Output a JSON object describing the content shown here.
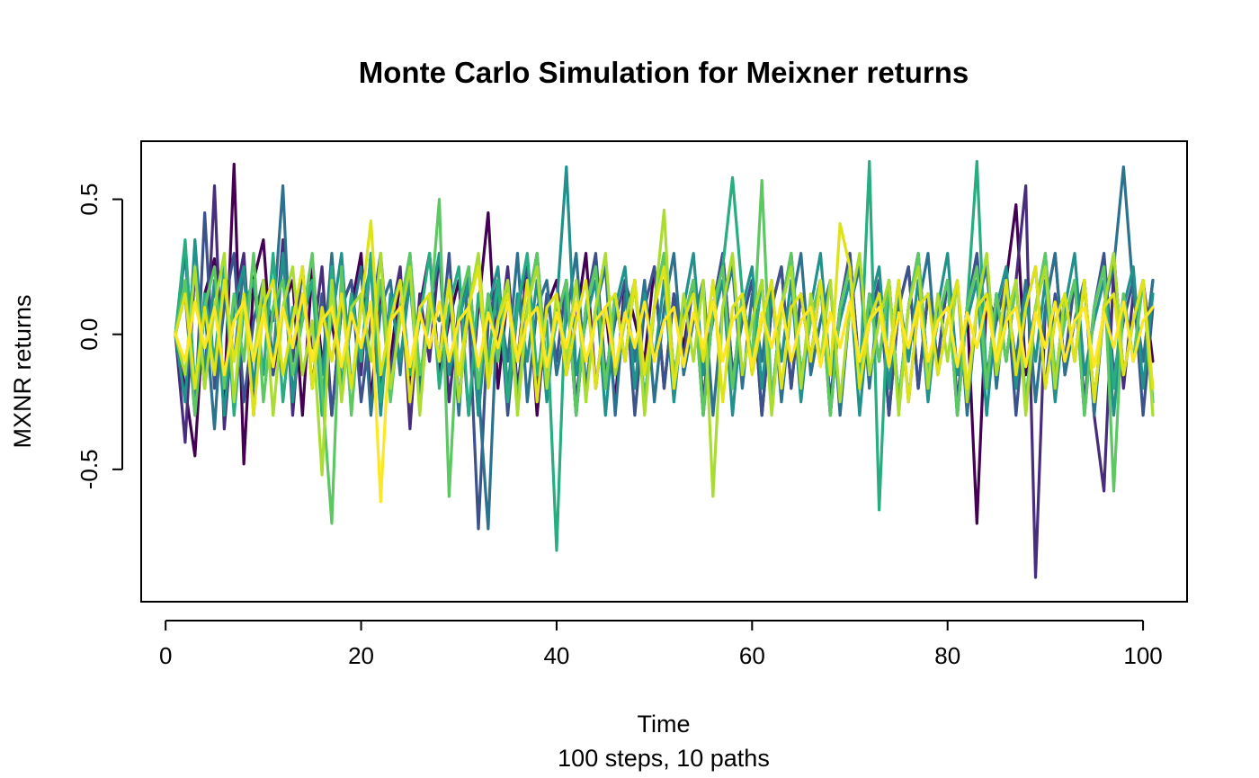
{
  "chart_data": {
    "type": "line",
    "title": "Monte Carlo Simulation for Meixner returns",
    "xlabel": "Time",
    "sublabel": "100 steps, 10 paths",
    "ylabel": "MXNR returns",
    "xlim": [
      -2.5,
      104.5
    ],
    "ylim": [
      -0.99,
      0.715
    ],
    "x_ticks": [
      0,
      20,
      40,
      60,
      80,
      100
    ],
    "x_tick_labels": [
      "0",
      "20",
      "40",
      "60",
      "80",
      "100"
    ],
    "y_ticks": [
      -0.5,
      0.0,
      0.5
    ],
    "y_tick_labels": [
      "-0.5",
      "0.0",
      "0.5"
    ],
    "x_start": 1,
    "n_points": 101,
    "palette": "viridis",
    "series": [
      {
        "color": "#440154",
        "values": [
          0,
          -0.2,
          -0.45,
          0.15,
          0.28,
          -0.25,
          0.63,
          -0.48,
          0.2,
          0.35,
          -0.15,
          0.1,
          0.2,
          -0.3,
          0.25,
          -0.1,
          0.05,
          -0.2,
          0.1,
          0.3,
          -0.25,
          0.15,
          -0.1,
          0.2,
          -0.2,
          0.1,
          0.3,
          -0.15,
          0.05,
          0.2,
          -0.3,
          0.1,
          0.45,
          -0.2,
          0.15,
          -0.1,
          0.25,
          -0.3,
          0.1,
          0.2,
          -0.15,
          0.05,
          0.3,
          -0.2,
          0.1,
          -0.25,
          0.2,
          0.05,
          -0.1,
          0.25,
          -0.2,
          0.15,
          -0.05,
          0.2,
          -0.25,
          0.1,
          0.3,
          -0.15,
          0.05,
          0.2,
          -0.3,
          0.1,
          0.25,
          -0.2,
          0.15,
          -0.1,
          0.2,
          -0.25,
          0.1,
          0.3,
          -0.15,
          0.05,
          0.2,
          -0.3,
          0.1,
          0.25,
          -0.2,
          0.15,
          -0.1,
          0.2,
          -0.25,
          0.1,
          -0.7,
          0.15,
          0.05,
          0.2,
          0.48,
          -0.15,
          0.1,
          0.25,
          -0.2,
          0.15,
          -0.1,
          0.2,
          -0.25,
          0.1,
          0.3,
          -0.15,
          0.05,
          0.2,
          -0.1
        ]
      },
      {
        "color": "#472D7B",
        "values": [
          0,
          -0.4,
          0.25,
          -0.2,
          0.55,
          -0.35,
          0.1,
          0.3,
          -0.25,
          0.2,
          -0.1,
          0.35,
          -0.3,
          0.15,
          -0.05,
          0.25,
          -0.3,
          0.1,
          0.2,
          -0.15,
          0.3,
          -0.2,
          0.05,
          0.25,
          -0.35,
          0.15,
          -0.1,
          0.3,
          -0.25,
          0.1,
          0.2,
          -0.3,
          0.15,
          -0.05,
          0.25,
          -0.2,
          0.1,
          0.3,
          -0.15,
          0.05,
          0.2,
          -0.3,
          0.1,
          0.25,
          -0.2,
          0.15,
          -0.1,
          0.2,
          -0.25,
          0.1,
          0.3,
          -0.15,
          0.05,
          0.2,
          -0.3,
          0.1,
          0.25,
          -0.2,
          0.15,
          -0.1,
          0.2,
          -0.25,
          0.1,
          0.3,
          -0.15,
          0.05,
          0.2,
          -0.3,
          0.1,
          0.25,
          -0.2,
          0.15,
          -0.1,
          0.2,
          -0.25,
          0.1,
          0.3,
          -0.15,
          0.05,
          0.2,
          -0.3,
          0.1,
          0.25,
          -0.2,
          0.15,
          -0.1,
          0.2,
          0.55,
          -0.9,
          0.1,
          0.3,
          -0.15,
          0.05,
          0.2,
          -0.3,
          -0.58,
          0.25,
          -0.2,
          0.15,
          -0.1,
          0.2
        ]
      },
      {
        "color": "#3B528B",
        "values": [
          0,
          0.15,
          -0.3,
          0.45,
          -0.2,
          0.1,
          0.3,
          -0.25,
          0.05,
          0.2,
          -0.15,
          0.3,
          -0.1,
          0.25,
          -0.2,
          0.15,
          -0.3,
          0.1,
          0.2,
          -0.25,
          0.05,
          0.3,
          -0.15,
          0.1,
          0.25,
          -0.2,
          0.15,
          -0.1,
          0.3,
          -0.25,
          0.1,
          -0.72,
          0.05,
          0.2,
          -0.3,
          0.1,
          0.25,
          -0.2,
          0.15,
          -0.1,
          0.2,
          -0.25,
          0.1,
          0.3,
          -0.15,
          0.05,
          0.2,
          -0.3,
          0.1,
          0.25,
          -0.2,
          0.15,
          -0.1,
          0.2,
          -0.25,
          0.1,
          0.3,
          -0.15,
          0.05,
          0.2,
          -0.3,
          0.1,
          0.25,
          -0.2,
          0.15,
          -0.1,
          0.2,
          -0.25,
          0.1,
          0.3,
          -0.15,
          0.05,
          0.2,
          -0.3,
          0.1,
          0.25,
          -0.2,
          0.15,
          -0.1,
          0.2,
          -0.25,
          0.1,
          0.3,
          -0.15,
          0.05,
          0.2,
          -0.3,
          0.1,
          0.25,
          -0.2,
          0.15,
          -0.1,
          0.2,
          -0.25,
          0.1,
          0.3,
          -0.15,
          0.05,
          0.2,
          -0.3,
          0.1
        ]
      },
      {
        "color": "#2C728E",
        "values": [
          0,
          0.3,
          -0.2,
          0.1,
          -0.35,
          0.2,
          -0.1,
          0.25,
          -0.3,
          0.15,
          0.05,
          0.55,
          -0.25,
          0.1,
          0.2,
          -0.15,
          0.3,
          -0.2,
          0.05,
          0.25,
          -0.3,
          0.1,
          0.2,
          -0.15,
          0.3,
          -0.25,
          0.1,
          0.05,
          0.2,
          -0.3,
          0.25,
          -0.2,
          -0.72,
          0.15,
          -0.1,
          0.3,
          -0.25,
          0.1,
          0.2,
          -0.15,
          0.05,
          0.3,
          -0.2,
          0.1,
          0.25,
          -0.3,
          0.15,
          -0.1,
          0.2,
          -0.25,
          0.1,
          0.3,
          -0.15,
          0.05,
          0.2,
          -0.3,
          0.1,
          0.25,
          -0.2,
          0.15,
          -0.1,
          0.2,
          -0.25,
          0.1,
          0.3,
          -0.15,
          0.05,
          0.2,
          -0.3,
          0.1,
          0.25,
          -0.2,
          0.15,
          -0.1,
          0.2,
          -0.25,
          0.1,
          0.3,
          -0.15,
          0.05,
          0.2,
          -0.3,
          0.1,
          0.25,
          -0.2,
          0.15,
          -0.1,
          0.2,
          -0.25,
          0.1,
          0.3,
          -0.15,
          0.05,
          0.2,
          -0.3,
          0.1,
          0.25,
          0.62,
          0.15,
          -0.1,
          0.2
        ]
      },
      {
        "color": "#21918C",
        "values": [
          0,
          -0.25,
          0.35,
          -0.15,
          0.2,
          -0.3,
          0.1,
          0.25,
          -0.2,
          0.15,
          -0.1,
          0.3,
          -0.25,
          0.1,
          0.2,
          -0.15,
          0.05,
          0.3,
          -0.2,
          0.1,
          0.25,
          -0.3,
          0.15,
          -0.1,
          0.2,
          -0.25,
          0.1,
          0.3,
          -0.15,
          0.05,
          0.2,
          -0.3,
          0.1,
          0.25,
          -0.2,
          0.15,
          -0.1,
          0.2,
          -0.25,
          0.1,
          0.62,
          -0.15,
          0.05,
          0.2,
          -0.3,
          0.1,
          0.25,
          -0.2,
          0.15,
          -0.1,
          0.2,
          -0.25,
          0.1,
          0.3,
          -0.15,
          0.05,
          0.2,
          -0.3,
          0.1,
          0.25,
          -0.2,
          0.15,
          -0.1,
          0.2,
          -0.25,
          0.1,
          0.3,
          -0.15,
          0.05,
          0.2,
          -0.3,
          0.1,
          0.25,
          -0.2,
          0.15,
          -0.1,
          0.2,
          -0.25,
          0.1,
          0.3,
          -0.15,
          0.05,
          0.2,
          -0.3,
          0.1,
          0.25,
          -0.2,
          0.15,
          -0.1,
          0.2,
          -0.25,
          0.1,
          0.3,
          -0.15,
          0.05,
          0.2,
          -0.3,
          0.1,
          0.25,
          -0.2,
          0.15
        ]
      },
      {
        "color": "#27AD81",
        "values": [
          0,
          0.35,
          -0.2,
          0.15,
          -0.1,
          0.25,
          -0.3,
          0.1,
          0.2,
          -0.15,
          0.3,
          -0.25,
          0.1,
          0.05,
          0.2,
          -0.3,
          0.25,
          -0.2,
          0.15,
          -0.1,
          0.3,
          -0.25,
          0.1,
          0.2,
          -0.15,
          0.05,
          0.3,
          -0.2,
          0.1,
          0.25,
          -0.3,
          0.15,
          -0.1,
          0.2,
          -0.25,
          0.1,
          0.3,
          -0.15,
          0.05,
          -0.8,
          0.2,
          -0.3,
          0.1,
          0.25,
          -0.2,
          0.15,
          -0.1,
          0.2,
          -0.25,
          0.1,
          0.3,
          -0.15,
          0.05,
          0.2,
          -0.3,
          0.1,
          0.25,
          0.58,
          0.15,
          -0.1,
          0.2,
          -0.25,
          0.1,
          0.3,
          -0.15,
          0.05,
          0.2,
          -0.3,
          0.1,
          0.25,
          -0.2,
          0.64,
          -0.65,
          0.2,
          -0.25,
          0.1,
          0.3,
          -0.15,
          0.05,
          0.2,
          -0.3,
          0.1,
          0.64,
          -0.2,
          0.15,
          -0.1,
          0.2,
          -0.25,
          0.1,
          0.3,
          -0.15,
          0.05,
          0.2,
          -0.3,
          0.1,
          0.25,
          -0.2,
          0.15,
          -0.1,
          0.2,
          -0.25
        ]
      },
      {
        "color": "#5DC863",
        "values": [
          0,
          0.2,
          -0.3,
          0.1,
          0.25,
          -0.2,
          0.15,
          -0.1,
          0.3,
          -0.25,
          0.1,
          0.2,
          -0.15,
          0.05,
          0.3,
          -0.2,
          -0.7,
          0.25,
          -0.3,
          0.15,
          -0.1,
          0.2,
          -0.25,
          0.1,
          0.3,
          -0.15,
          0.05,
          0.5,
          -0.6,
          0.1,
          0.25,
          -0.2,
          0.15,
          -0.1,
          0.2,
          -0.25,
          0.1,
          0.3,
          -0.15,
          0.05,
          0.2,
          -0.3,
          0.1,
          0.25,
          -0.2,
          0.15,
          -0.1,
          0.2,
          -0.25,
          0.1,
          0.3,
          -0.15,
          0.05,
          0.2,
          -0.3,
          0.1,
          0.25,
          -0.2,
          0.15,
          -0.1,
          0.57,
          -0.25,
          0.1,
          0.3,
          -0.15,
          0.05,
          0.2,
          -0.3,
          0.1,
          0.25,
          -0.2,
          0.15,
          -0.1,
          0.2,
          -0.25,
          0.1,
          0.3,
          -0.15,
          0.05,
          0.2,
          -0.3,
          0.1,
          0.25,
          -0.2,
          0.15,
          -0.1,
          0.2,
          -0.25,
          0.1,
          0.3,
          -0.15,
          0.05,
          0.2,
          -0.3,
          0.1,
          0.25,
          -0.58,
          0.15,
          -0.1,
          0.2,
          -0.25
        ]
      },
      {
        "color": "#AADC32",
        "values": [
          0,
          -0.15,
          0.25,
          -0.2,
          0.1,
          0.3,
          -0.25,
          0.15,
          -0.1,
          0.2,
          -0.3,
          0.1,
          0.25,
          -0.15,
          0.05,
          -0.52,
          0.2,
          -0.25,
          0.1,
          0.15,
          -0.1,
          0.3,
          -0.2,
          0.05,
          0.25,
          -0.3,
          0.15,
          -0.1,
          0.2,
          -0.25,
          0.1,
          0.3,
          -0.15,
          0.05,
          0.2,
          -0.3,
          0.1,
          0.25,
          -0.2,
          0.15,
          -0.1,
          0.2,
          -0.25,
          0.1,
          0.3,
          -0.15,
          0.05,
          0.2,
          -0.3,
          0.1,
          0.46,
          -0.2,
          0.15,
          -0.1,
          0.2,
          -0.6,
          0.1,
          0.3,
          -0.15,
          0.05,
          0.2,
          -0.3,
          0.1,
          0.25,
          -0.2,
          0.15,
          -0.1,
          0.2,
          -0.25,
          0.1,
          0.3,
          -0.15,
          0.05,
          0.2,
          -0.3,
          0.1,
          0.25,
          -0.2,
          0.15,
          -0.1,
          0.2,
          -0.25,
          0.1,
          0.3,
          -0.15,
          0.05,
          0.2,
          -0.3,
          0.1,
          0.25,
          -0.2,
          0.15,
          -0.1,
          0.2,
          -0.25,
          0.1,
          0.3,
          -0.15,
          0.05,
          0.2,
          -0.3
        ]
      },
      {
        "color": "#DDE318",
        "values": [
          0,
          0.15,
          -0.2,
          0.1,
          -0.15,
          0.2,
          -0.1,
          0.15,
          -0.3,
          0.1,
          0.2,
          -0.15,
          0.05,
          0.25,
          -0.2,
          0.1,
          -0.1,
          0.15,
          -0.2,
          0.1,
          0.42,
          -0.15,
          0.05,
          0.2,
          -0.25,
          0.1,
          0.15,
          -0.1,
          0.2,
          -0.15,
          0.1,
          0.25,
          -0.2,
          0.05,
          0.15,
          -0.1,
          0.2,
          -0.25,
          0.1,
          0.15,
          -0.15,
          0.05,
          0.2,
          -0.2,
          0.1,
          0.15,
          -0.1,
          0.2,
          -0.15,
          0.1,
          0.25,
          -0.2,
          0.05,
          0.15,
          -0.1,
          0.2,
          -0.25,
          0.1,
          0.15,
          -0.15,
          0.05,
          0.2,
          -0.2,
          0.1,
          0.15,
          -0.1,
          0.2,
          -0.15,
          0.41,
          0.25,
          -0.2,
          0.05,
          0.15,
          -0.1,
          0.2,
          -0.25,
          0.1,
          0.15,
          -0.15,
          0.05,
          0.2,
          -0.2,
          0.1,
          0.15,
          -0.1,
          0.2,
          -0.15,
          0.1,
          0.25,
          -0.2,
          0.05,
          0.15,
          -0.1,
          0.2,
          -0.25,
          0.1,
          0.15,
          -0.15,
          0.05,
          0.2,
          -0.2
        ]
      },
      {
        "color": "#FDE725",
        "values": [
          0,
          -0.1,
          0.12,
          -0.05,
          0.1,
          -0.15,
          0.05,
          0.12,
          -0.1,
          0.08,
          -0.12,
          0.1,
          -0.05,
          0.15,
          -0.1,
          0.05,
          0.1,
          -0.12,
          0.08,
          -0.05,
          0.12,
          -0.62,
          0.05,
          0.1,
          -0.12,
          0.08,
          -0.05,
          0.12,
          -0.1,
          0.05,
          0.1,
          -0.12,
          0.08,
          -0.05,
          0.12,
          -0.1,
          0.05,
          0.1,
          -0.12,
          0.08,
          -0.05,
          0.12,
          -0.1,
          0.05,
          0.1,
          -0.12,
          0.08,
          -0.05,
          0.12,
          -0.1,
          0.05,
          0.1,
          -0.12,
          0.08,
          -0.05,
          0.12,
          -0.1,
          0.05,
          0.1,
          -0.12,
          0.08,
          -0.05,
          0.12,
          -0.1,
          0.05,
          0.1,
          -0.12,
          0.08,
          -0.05,
          0.12,
          -0.1,
          0.05,
          0.1,
          -0.12,
          0.08,
          -0.05,
          0.12,
          -0.1,
          0.05,
          0.1,
          -0.12,
          0.08,
          -0.05,
          0.12,
          -0.1,
          0.05,
          0.1,
          -0.12,
          0.08,
          -0.05,
          0.12,
          -0.1,
          0.05,
          0.1,
          -0.12,
          0.08,
          -0.05,
          0.12,
          -0.1,
          0.05,
          0.1
        ]
      }
    ]
  }
}
